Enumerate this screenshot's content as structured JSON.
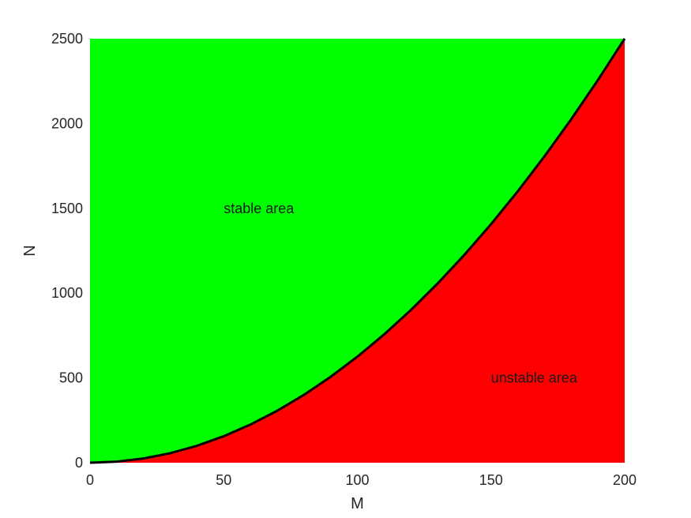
{
  "chart_data": {
    "type": "area",
    "xlabel": "M",
    "ylabel": "N",
    "xlim": [
      0,
      200
    ],
    "ylim": [
      0,
      2500
    ],
    "xticks": [
      0,
      50,
      100,
      150,
      200
    ],
    "yticks": [
      0,
      500,
      1000,
      1500,
      2000,
      2500
    ],
    "grid": false,
    "boundary": {
      "x": [
        0,
        10,
        20,
        30,
        40,
        50,
        60,
        70,
        80,
        90,
        100,
        110,
        120,
        130,
        140,
        150,
        160,
        170,
        180,
        190,
        200
      ],
      "y": [
        0,
        6.25,
        25,
        56.25,
        100,
        156.25,
        225,
        306.25,
        400,
        506.25,
        625,
        756.25,
        900,
        1056.25,
        1225,
        1406.25,
        1600,
        1806.25,
        2025,
        2256.25,
        2500
      ]
    },
    "regions": [
      {
        "label": "stable area",
        "position": "above curve",
        "color": "#00ff00",
        "label_at": {
          "x": 50,
          "y": 1500
        }
      },
      {
        "label": "unstable area",
        "position": "below curve",
        "color": "#ff0000",
        "label_at": {
          "x": 150,
          "y": 500
        }
      }
    ],
    "curve_color": "#000000"
  }
}
